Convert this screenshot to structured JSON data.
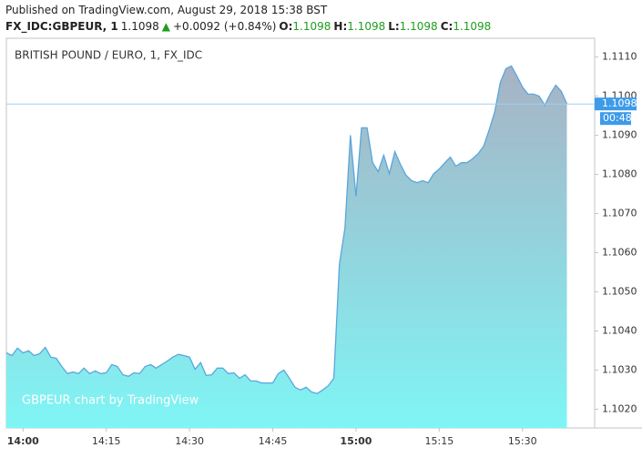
{
  "header": {
    "published": "Published on TradingView.com, August 29, 2018 15:38 BST",
    "symbol": "FX_IDC:GBPEUR, 1",
    "last": "1.1098",
    "arrow": "▲",
    "change": "+0.0092 (+0.84%)",
    "o_label": "O:",
    "o": "1.1098",
    "h_label": "H:",
    "h": "1.1098",
    "l_label": "L:",
    "l": "1.1098",
    "c_label": "C:",
    "c": "1.1098"
  },
  "chart_data": {
    "type": "area",
    "title": "BRITISH POUND / EURO, 1, FX_IDC",
    "watermark": "GBPEUR chart by TradingView",
    "color": "#5aa6dc",
    "x": [
      "13:57",
      "13:58",
      "13:59",
      "14:00",
      "14:01",
      "14:02",
      "14:03",
      "14:04",
      "14:05",
      "14:06",
      "14:07",
      "14:08",
      "14:09",
      "14:10",
      "14:11",
      "14:12",
      "14:13",
      "14:14",
      "14:15",
      "14:16",
      "14:17",
      "14:18",
      "14:19",
      "14:20",
      "14:21",
      "14:22",
      "14:23",
      "14:24",
      "14:25",
      "14:26",
      "14:27",
      "14:28",
      "14:29",
      "14:30",
      "14:31",
      "14:32",
      "14:33",
      "14:34",
      "14:35",
      "14:36",
      "14:37",
      "14:38",
      "14:39",
      "14:40",
      "14:41",
      "14:42",
      "14:43",
      "14:44",
      "14:45",
      "14:46",
      "14:47",
      "14:48",
      "14:49",
      "14:50",
      "14:51",
      "14:52",
      "14:53",
      "14:54",
      "14:55",
      "14:56",
      "14:57",
      "14:58",
      "14:59",
      "15:00",
      "15:01",
      "15:02",
      "15:03",
      "15:04",
      "15:05",
      "15:06",
      "15:07",
      "15:08",
      "15:09",
      "15:10",
      "15:11",
      "15:12",
      "15:13",
      "15:14",
      "15:15",
      "15:16",
      "15:17",
      "15:18",
      "15:19",
      "15:20",
      "15:21",
      "15:22",
      "15:23",
      "15:24",
      "15:25",
      "15:26",
      "15:27",
      "15:28",
      "15:29",
      "15:30",
      "15:31",
      "15:32",
      "15:33",
      "15:34",
      "15:35",
      "15:36",
      "15:37",
      "15:38"
    ],
    "values": [
      1.10344,
      1.10337,
      1.10356,
      1.10344,
      1.10349,
      1.10337,
      1.10342,
      1.10358,
      1.10333,
      1.1033,
      1.10309,
      1.10291,
      1.10295,
      1.10291,
      1.10305,
      1.10291,
      1.10298,
      1.10291,
      1.10293,
      1.10314,
      1.10309,
      1.10288,
      1.10284,
      1.10293,
      1.10291,
      1.10309,
      1.10314,
      1.10305,
      1.10314,
      1.10323,
      1.10333,
      1.1034,
      1.10337,
      1.10333,
      1.10302,
      1.10319,
      1.10286,
      1.10288,
      1.10305,
      1.10305,
      1.10291,
      1.10293,
      1.10279,
      1.10288,
      1.10272,
      1.10272,
      1.10267,
      1.10267,
      1.10267,
      1.10291,
      1.103,
      1.10279,
      1.10256,
      1.10249,
      1.10256,
      1.10244,
      1.1024,
      1.10249,
      1.1026,
      1.10279,
      1.1057,
      1.10663,
      1.109,
      1.10744,
      1.10919,
      1.10919,
      1.1083,
      1.10807,
      1.10849,
      1.10802,
      1.10858,
      1.10826,
      1.10798,
      1.10784,
      1.10779,
      1.10784,
      1.10779,
      1.10802,
      1.10814,
      1.1083,
      1.10844,
      1.10821,
      1.1083,
      1.1083,
      1.1084,
      1.10853,
      1.10872,
      1.10914,
      1.1096,
      1.11035,
      1.1107,
      1.11077,
      1.11051,
      1.11023,
      1.11005,
      1.11005,
      1.11,
      1.10977,
      1.11005,
      1.11028,
      1.11012,
      1.1098
    ],
    "xlim": [
      "13:57",
      "15:43"
    ],
    "xticks": [
      "14:00",
      "14:15",
      "14:30",
      "14:45",
      "15:00",
      "15:15",
      "15:30"
    ],
    "ylim": [
      1.10152,
      1.11148
    ],
    "yticks": [
      {
        "value": 1.102,
        "label": "1.1020"
      },
      {
        "value": 1.103,
        "label": "1.1030"
      },
      {
        "value": 1.104,
        "label": "1.1040"
      },
      {
        "value": 1.105,
        "label": "1.1050"
      },
      {
        "value": 1.106,
        "label": "1.1060"
      },
      {
        "value": 1.107,
        "label": "1.1070"
      },
      {
        "value": 1.108,
        "label": "1.1080"
      },
      {
        "value": 1.109,
        "label": "1.1090"
      },
      {
        "value": 1.11,
        "label": "1.1100"
      },
      {
        "value": 1.111,
        "label": "1.1110"
      }
    ],
    "price_label": {
      "value": 1.1098,
      "label": "1.1098"
    },
    "countdown": "00:48"
  }
}
